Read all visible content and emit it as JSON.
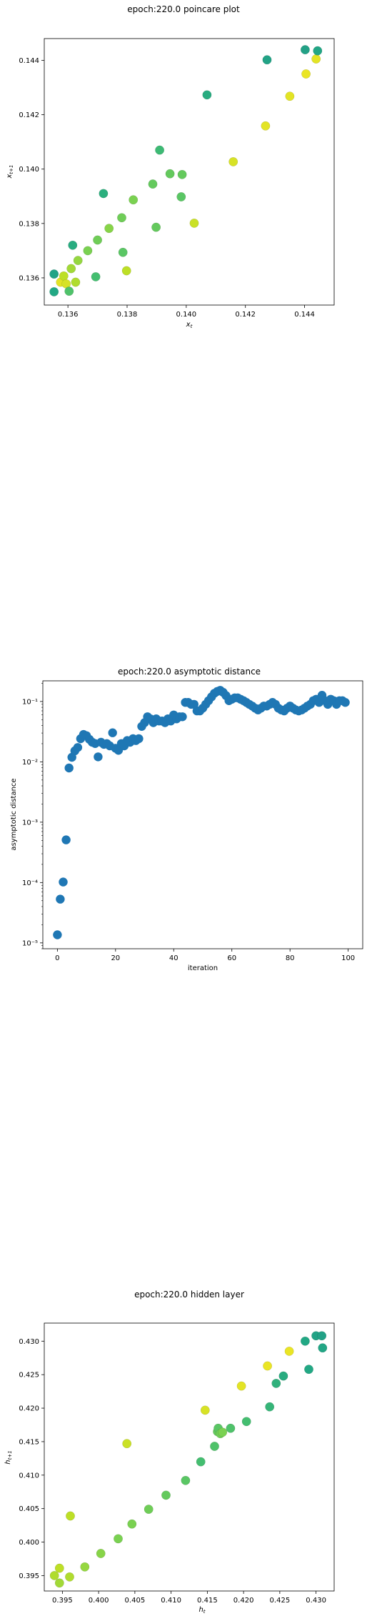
{
  "chart_data": [
    {
      "type": "scatter",
      "title": "epoch:220.0 poincare plot",
      "xlabel": "x_t",
      "ylabel": "x_{t+1}",
      "xlim": [
        0.1352,
        0.145
      ],
      "ylim": [
        0.135,
        0.1448
      ],
      "xticks": [
        0.136,
        0.138,
        0.14,
        0.142,
        0.144
      ],
      "yticks": [
        0.136,
        0.138,
        0.14,
        0.142,
        0.144
      ],
      "xticklabels": [
        "0.136",
        "0.138",
        "0.140",
        "0.142",
        "0.144"
      ],
      "yticklabels": [
        "0.136",
        "0.138",
        "0.140",
        "0.142",
        "0.144"
      ],
      "grid": false,
      "colormap": "viridis-upper",
      "points": [
        {
          "x": 0.13553,
          "y": 0.13614,
          "c": 0.58
        },
        {
          "x": 0.13553,
          "y": 0.13549,
          "c": 0.6
        },
        {
          "x": 0.13575,
          "y": 0.13584,
          "c": 0.96
        },
        {
          "x": 0.13586,
          "y": 0.13607,
          "c": 0.9
        },
        {
          "x": 0.13594,
          "y": 0.13578,
          "c": 0.94
        },
        {
          "x": 0.13604,
          "y": 0.13551,
          "c": 0.72
        },
        {
          "x": 0.13611,
          "y": 0.13634,
          "c": 0.86
        },
        {
          "x": 0.13616,
          "y": 0.1372,
          "c": 0.62
        },
        {
          "x": 0.13626,
          "y": 0.13584,
          "c": 0.88
        },
        {
          "x": 0.13634,
          "y": 0.13664,
          "c": 0.84
        },
        {
          "x": 0.13667,
          "y": 0.137,
          "c": 0.8
        },
        {
          "x": 0.13694,
          "y": 0.13604,
          "c": 0.7
        },
        {
          "x": 0.137,
          "y": 0.13739,
          "c": 0.78
        },
        {
          "x": 0.1372,
          "y": 0.1391,
          "c": 0.63
        },
        {
          "x": 0.13739,
          "y": 0.13782,
          "c": 0.82
        },
        {
          "x": 0.13782,
          "y": 0.13821,
          "c": 0.78
        },
        {
          "x": 0.13786,
          "y": 0.13694,
          "c": 0.74
        },
        {
          "x": 0.13798,
          "y": 0.13626,
          "c": 0.9
        },
        {
          "x": 0.13821,
          "y": 0.13887,
          "c": 0.8
        },
        {
          "x": 0.13887,
          "y": 0.13945,
          "c": 0.76
        },
        {
          "x": 0.13898,
          "y": 0.13786,
          "c": 0.76
        },
        {
          "x": 0.1391,
          "y": 0.1407,
          "c": 0.68
        },
        {
          "x": 0.13945,
          "y": 0.13983,
          "c": 0.76
        },
        {
          "x": 0.13983,
          "y": 0.13898,
          "c": 0.74
        },
        {
          "x": 0.13986,
          "y": 0.1398,
          "c": 0.76
        },
        {
          "x": 0.14027,
          "y": 0.13801,
          "c": 0.92
        },
        {
          "x": 0.1407,
          "y": 0.14273,
          "c": 0.62
        },
        {
          "x": 0.14159,
          "y": 0.14027,
          "c": 0.94
        },
        {
          "x": 0.14268,
          "y": 0.14159,
          "c": 0.96
        },
        {
          "x": 0.14273,
          "y": 0.14402,
          "c": 0.58
        },
        {
          "x": 0.1435,
          "y": 0.14268,
          "c": 0.96
        },
        {
          "x": 0.14402,
          "y": 0.14439,
          "c": 0.57
        },
        {
          "x": 0.14405,
          "y": 0.1435,
          "c": 0.97
        },
        {
          "x": 0.14439,
          "y": 0.14405,
          "c": 0.96
        },
        {
          "x": 0.14444,
          "y": 0.14435,
          "c": 0.59
        }
      ]
    },
    {
      "type": "scatter",
      "title": "epoch:220.0 asymptotic distance",
      "xlabel": "iteration",
      "ylabel": "asymptotic distance",
      "xlim": [
        -5,
        105
      ],
      "ylim": [
        8e-06,
        0.22
      ],
      "yscale": "log",
      "xticks": [
        0,
        20,
        40,
        60,
        80,
        100
      ],
      "xticklabels": [
        "0",
        "20",
        "40",
        "60",
        "80",
        "100"
      ],
      "yticks": [
        1e-05,
        0.0001,
        0.001,
        0.01,
        0.1
      ],
      "yticklabels": [
        "10⁻⁵",
        "10⁻⁴",
        "10⁻³",
        "10⁻²",
        "10⁻¹"
      ],
      "grid": false,
      "color": "#1f77b4",
      "x": [
        0,
        1,
        2,
        3,
        4,
        5,
        6,
        7,
        8,
        9,
        10,
        11,
        12,
        13,
        14,
        15,
        16,
        17,
        18,
        19,
        20,
        21,
        22,
        23,
        24,
        25,
        26,
        27,
        28,
        29,
        30,
        31,
        32,
        33,
        34,
        35,
        36,
        37,
        38,
        39,
        40,
        41,
        42,
        43,
        44,
        45,
        46,
        47,
        48,
        49,
        50,
        51,
        52,
        53,
        54,
        55,
        56,
        57,
        58,
        59,
        60,
        61,
        62,
        63,
        64,
        65,
        66,
        67,
        68,
        69,
        70,
        71,
        72,
        73,
        74,
        75,
        76,
        77,
        78,
        79,
        80,
        81,
        82,
        83,
        84,
        85,
        86,
        87,
        88,
        89,
        90,
        91,
        92,
        93,
        94,
        95,
        96,
        97,
        98,
        99
      ],
      "y": [
        1.36e-05,
        5.3e-05,
        0.000102,
        0.00051,
        0.0079,
        0.0119,
        0.0152,
        0.0173,
        0.0242,
        0.0284,
        0.0271,
        0.0236,
        0.0211,
        0.0201,
        0.0121,
        0.0211,
        0.0195,
        0.0201,
        0.0184,
        0.0303,
        0.0168,
        0.0155,
        0.0201,
        0.0184,
        0.0225,
        0.0211,
        0.0242,
        0.0225,
        0.0242,
        0.0386,
        0.0447,
        0.0559,
        0.0516,
        0.0447,
        0.0516,
        0.0475,
        0.0475,
        0.0447,
        0.0516,
        0.0475,
        0.0598,
        0.0516,
        0.0559,
        0.0559,
        0.0967,
        0.0967,
        0.0898,
        0.0898,
        0.0698,
        0.0698,
        0.0775,
        0.0898,
        0.103,
        0.119,
        0.137,
        0.147,
        0.153,
        0.142,
        0.125,
        0.103,
        0.109,
        0.115,
        0.115,
        0.109,
        0.103,
        0.0967,
        0.0898,
        0.084,
        0.0775,
        0.0725,
        0.0775,
        0.084,
        0.084,
        0.0898,
        0.0967,
        0.0898,
        0.0775,
        0.0725,
        0.0698,
        0.0775,
        0.084,
        0.0775,
        0.0725,
        0.0698,
        0.0725,
        0.0775,
        0.084,
        0.0898,
        0.103,
        0.109,
        0.0967,
        0.127,
        0.103,
        0.0898,
        0.109,
        0.103,
        0.0898,
        0.103,
        0.103,
        0.0967
      ]
    },
    {
      "type": "scatter",
      "title": "epoch:220.0 hidden layer",
      "xlabel": "h_t",
      "ylabel": "h_{t+1}",
      "xlim": [
        0.3925,
        0.4325
      ],
      "ylim": [
        0.3927,
        0.4327
      ],
      "xticks": [
        0.395,
        0.4,
        0.405,
        0.41,
        0.415,
        0.42,
        0.425,
        0.43
      ],
      "yticks": [
        0.395,
        0.4,
        0.405,
        0.41,
        0.415,
        0.42,
        0.425,
        0.43
      ],
      "xticklabels": [
        "0.395",
        "0.400",
        "0.405",
        "0.410",
        "0.415",
        "0.420",
        "0.425",
        "0.430"
      ],
      "yticklabels": [
        "0.395",
        "0.400",
        "0.405",
        "0.410",
        "0.415",
        "0.420",
        "0.425",
        "0.430"
      ],
      "grid": false,
      "colormap": "viridis-upper",
      "points": [
        {
          "x": 0.3939,
          "y": 0.395,
          "c": 0.88
        },
        {
          "x": 0.3946,
          "y": 0.3961,
          "c": 0.9
        },
        {
          "x": 0.3946,
          "y": 0.3939,
          "c": 0.86
        },
        {
          "x": 0.396,
          "y": 0.3948,
          "c": 0.88
        },
        {
          "x": 0.3961,
          "y": 0.4039,
          "c": 0.9
        },
        {
          "x": 0.3981,
          "y": 0.3963,
          "c": 0.84
        },
        {
          "x": 0.4003,
          "y": 0.3983,
          "c": 0.82
        },
        {
          "x": 0.4027,
          "y": 0.4005,
          "c": 0.8
        },
        {
          "x": 0.4039,
          "y": 0.4147,
          "c": 0.92
        },
        {
          "x": 0.4046,
          "y": 0.4027,
          "c": 0.8
        },
        {
          "x": 0.4069,
          "y": 0.4049,
          "c": 0.78
        },
        {
          "x": 0.4093,
          "y": 0.407,
          "c": 0.76
        },
        {
          "x": 0.412,
          "y": 0.4092,
          "c": 0.74
        },
        {
          "x": 0.4141,
          "y": 0.412,
          "c": 0.7
        },
        {
          "x": 0.4147,
          "y": 0.4197,
          "c": 0.94
        },
        {
          "x": 0.416,
          "y": 0.4143,
          "c": 0.72
        },
        {
          "x": 0.4164,
          "y": 0.4165,
          "c": 0.76
        },
        {
          "x": 0.4165,
          "y": 0.417,
          "c": 0.74
        },
        {
          "x": 0.4168,
          "y": 0.4162,
          "c": 0.78
        },
        {
          "x": 0.4171,
          "y": 0.4164,
          "c": 0.8
        },
        {
          "x": 0.4182,
          "y": 0.417,
          "c": 0.72
        },
        {
          "x": 0.4197,
          "y": 0.4233,
          "c": 0.96
        },
        {
          "x": 0.4204,
          "y": 0.418,
          "c": 0.7
        },
        {
          "x": 0.4233,
          "y": 0.4263,
          "c": 0.97
        },
        {
          "x": 0.4236,
          "y": 0.4202,
          "c": 0.66
        },
        {
          "x": 0.4245,
          "y": 0.4237,
          "c": 0.64
        },
        {
          "x": 0.4255,
          "y": 0.4248,
          "c": 0.62
        },
        {
          "x": 0.4263,
          "y": 0.4285,
          "c": 0.97
        },
        {
          "x": 0.4285,
          "y": 0.43,
          "c": 0.6
        },
        {
          "x": 0.429,
          "y": 0.4258,
          "c": 0.6
        },
        {
          "x": 0.43,
          "y": 0.4308,
          "c": 0.58
        },
        {
          "x": 0.4308,
          "y": 0.4308,
          "c": 0.57
        },
        {
          "x": 0.4309,
          "y": 0.429,
          "c": 0.59
        }
      ]
    }
  ]
}
